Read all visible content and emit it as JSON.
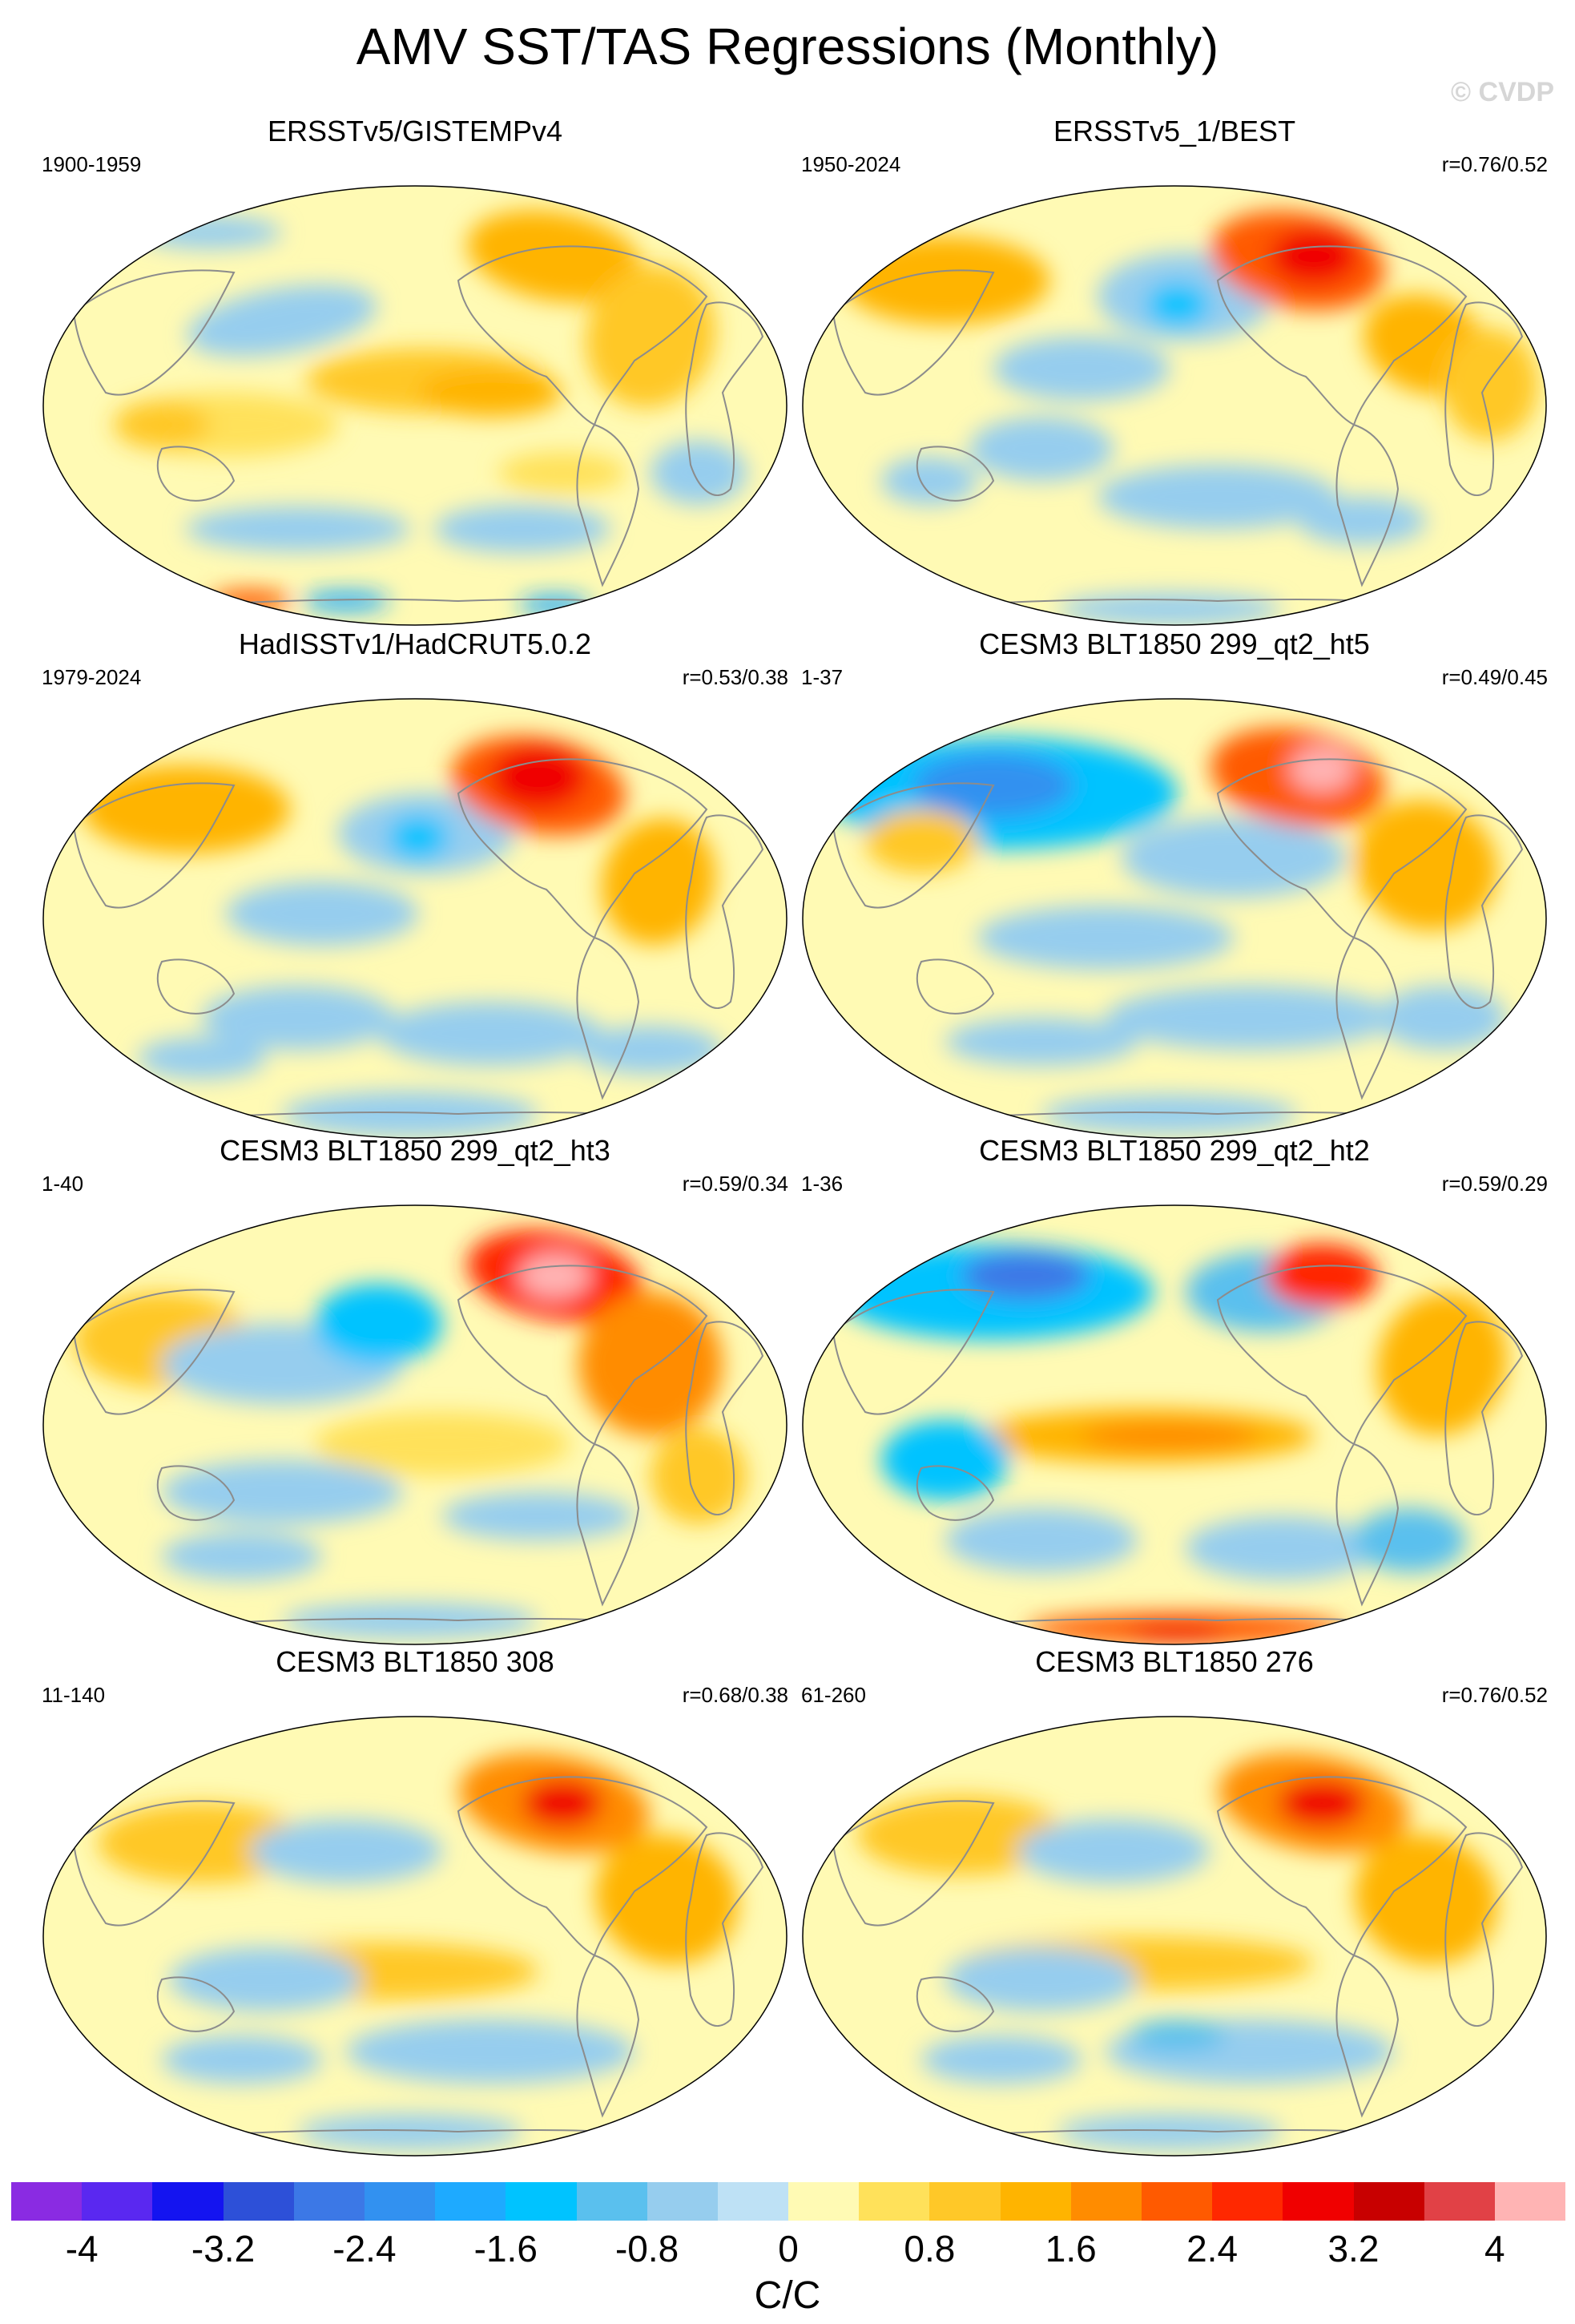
{
  "title": "AMV SST/TAS Regressions (Monthly)",
  "watermark": "© CVDP",
  "panels": [
    {
      "title": "ERSSTv5/GISTEMPv4",
      "period": "1900-1959",
      "corr": "",
      "pattern": "obs1"
    },
    {
      "title": "ERSSTv5_1/BEST",
      "period": "1950-2024",
      "corr": "r=0.76/0.52",
      "pattern": "obs2"
    },
    {
      "title": "HadISSTv1/HadCRUT5.0.2",
      "period": "1979-2024",
      "corr": "r=0.53/0.38",
      "pattern": "obs3"
    },
    {
      "title": "CESM3 BLT1850 299_qt2_ht5",
      "period": "1-37",
      "corr": "r=0.49/0.45",
      "pattern": "m1"
    },
    {
      "title": "CESM3 BLT1850 299_qt2_ht3",
      "period": "1-40",
      "corr": "r=0.59/0.34",
      "pattern": "m2"
    },
    {
      "title": "CESM3 BLT1850 299_qt2_ht2",
      "period": "1-36",
      "corr": "r=0.59/0.29",
      "pattern": "m3"
    },
    {
      "title": "CESM3 BLT1850 308",
      "period": "11-140",
      "corr": "r=0.68/0.38",
      "pattern": "m4"
    },
    {
      "title": "CESM3 BLT1850 276",
      "period": "61-260",
      "corr": "r=0.76/0.52",
      "pattern": "m5"
    }
  ],
  "colorbar": {
    "colors": [
      "#8a2be2",
      "#5a28f0",
      "#1414f0",
      "#2d50d8",
      "#3c78e6",
      "#3291f0",
      "#1eaaff",
      "#00c3ff",
      "#5ac0ee",
      "#96cdee",
      "#bee1f5",
      "#fffab4",
      "#ffe15a",
      "#ffc828",
      "#ffb400",
      "#ff8c00",
      "#ff5a00",
      "#ff2800",
      "#f00000",
      "#c80000",
      "#e14146",
      "#ffb4b4"
    ],
    "ticks": [
      "-4",
      "-3.2",
      "-2.4",
      "-1.6",
      "-0.8",
      "0",
      "0.8",
      "1.6",
      "2.4",
      "3.2",
      "4"
    ],
    "label": "C/C"
  }
}
